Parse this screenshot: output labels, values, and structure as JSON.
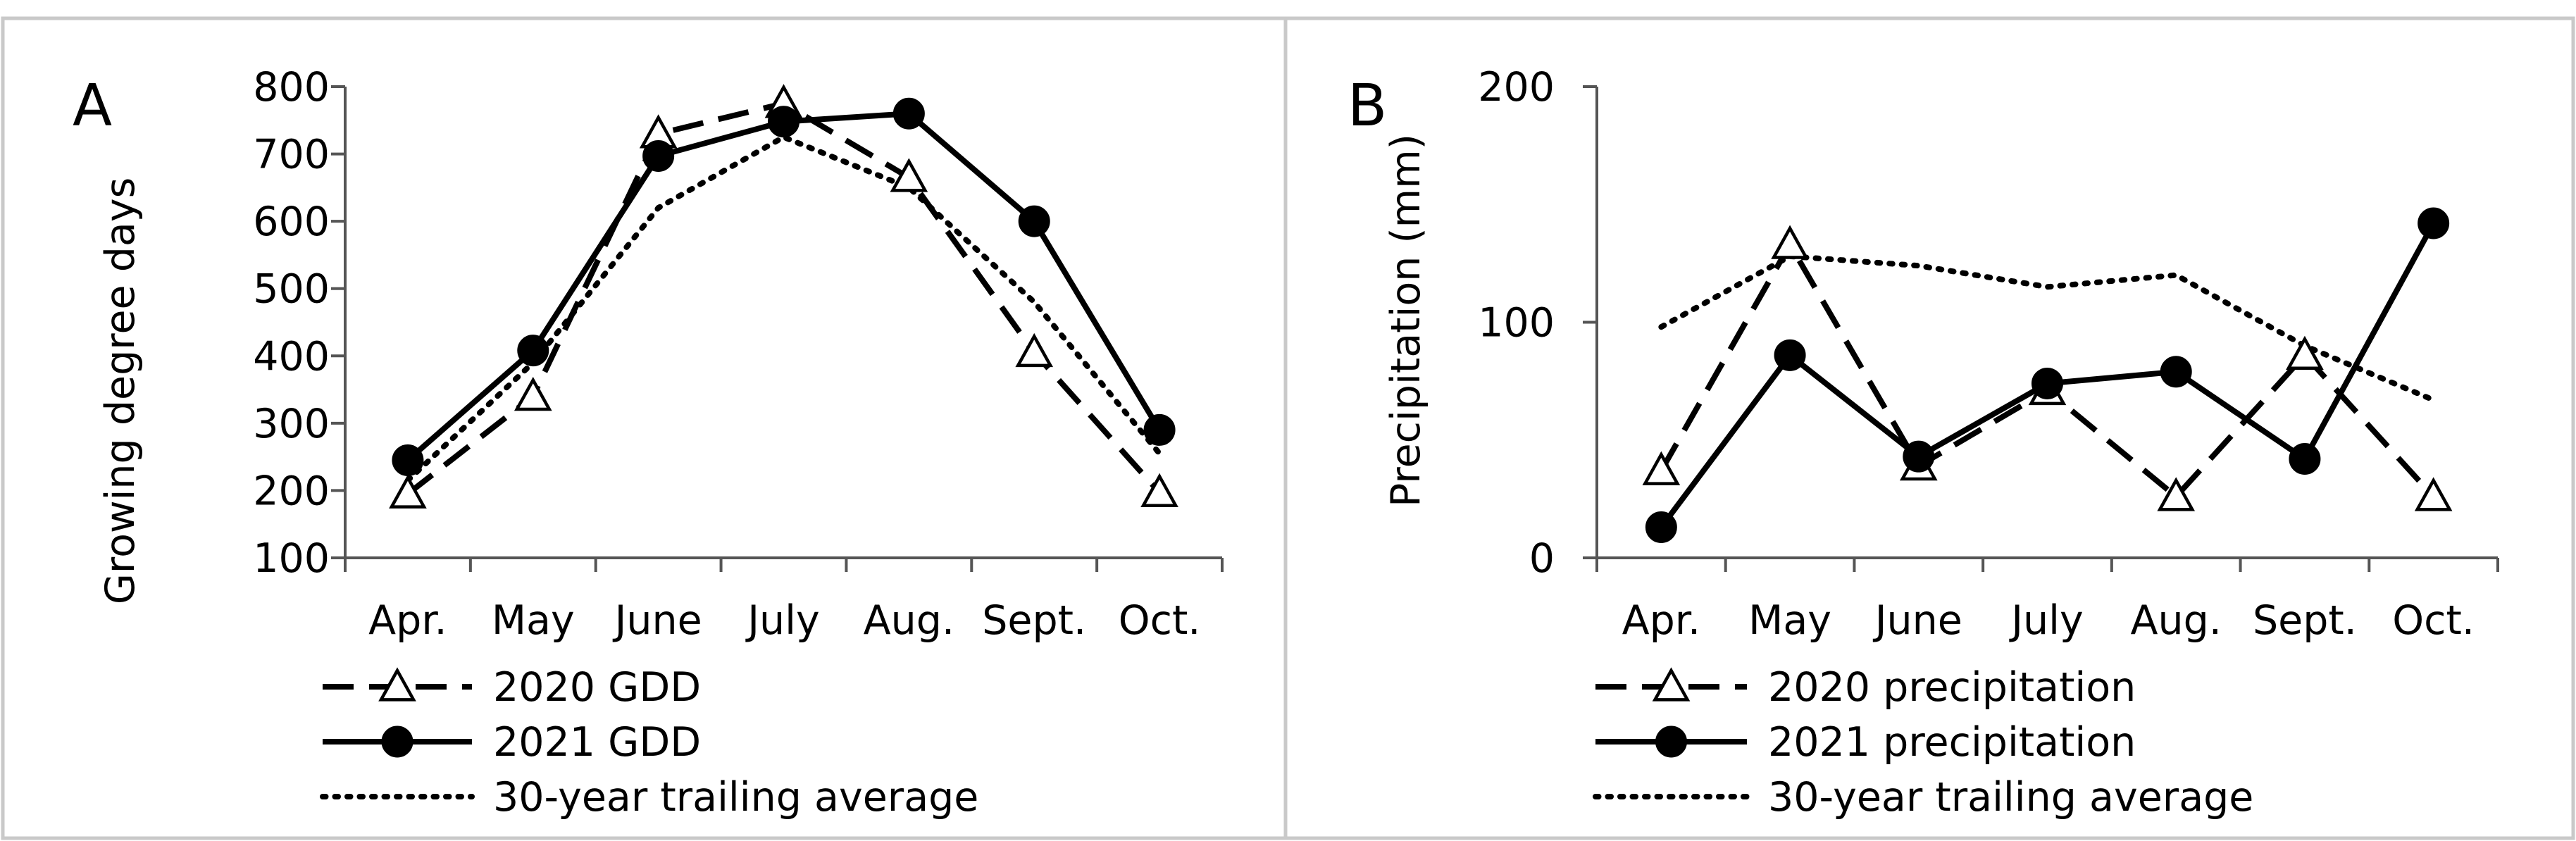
{
  "colors": {
    "ink": "#000000",
    "frame": "#c9c9c9",
    "background": "#ffffff",
    "marker_fill": "#ffffff"
  },
  "chart_data": [
    {
      "panel": "A",
      "type": "line",
      "title": "",
      "xlabel": "",
      "ylabel": "Growing degree days",
      "categories": [
        "Apr.",
        "May",
        "June",
        "July",
        "Aug.",
        "Sept.",
        "Oct."
      ],
      "ylim": [
        100,
        800
      ],
      "yticks": [
        100,
        200,
        300,
        400,
        500,
        600,
        700,
        800
      ],
      "grid": false,
      "legend_position": "bottom-left",
      "series": [
        {
          "name": "2020 GDD",
          "style": "dashed",
          "marker": "triangle",
          "values": [
            195,
            340,
            730,
            775,
            665,
            405,
            197
          ]
        },
        {
          "name": "2021 GDD",
          "style": "solid",
          "marker": "circle",
          "values": [
            245,
            408,
            697,
            748,
            760,
            600,
            290
          ]
        },
        {
          "name": "30-year trailing average",
          "style": "dotted",
          "marker": "none",
          "values": [
            215,
            390,
            620,
            725,
            650,
            480,
            255
          ]
        }
      ]
    },
    {
      "panel": "B",
      "type": "line",
      "title": "",
      "xlabel": "",
      "ylabel": "Precipitation (mm)",
      "categories": [
        "Apr.",
        "May",
        "June",
        "July",
        "Aug.",
        "Sept.",
        "Oct."
      ],
      "ylim": [
        0,
        200
      ],
      "yticks": [
        0,
        100,
        200
      ],
      "grid": false,
      "legend_position": "bottom-left",
      "series": [
        {
          "name": "2020 precipitation",
          "style": "dashed",
          "marker": "triangle",
          "values": [
            37,
            133,
            39,
            71,
            26,
            86,
            26
          ]
        },
        {
          "name": "2021 precipitation",
          "style": "solid",
          "marker": "circle",
          "values": [
            13,
            86,
            43,
            74,
            79,
            42,
            142
          ]
        },
        {
          "name": "30-year trailing average",
          "style": "dotted",
          "marker": "none",
          "values": [
            98,
            128,
            124,
            115,
            120,
            90,
            67
          ]
        }
      ]
    }
  ]
}
